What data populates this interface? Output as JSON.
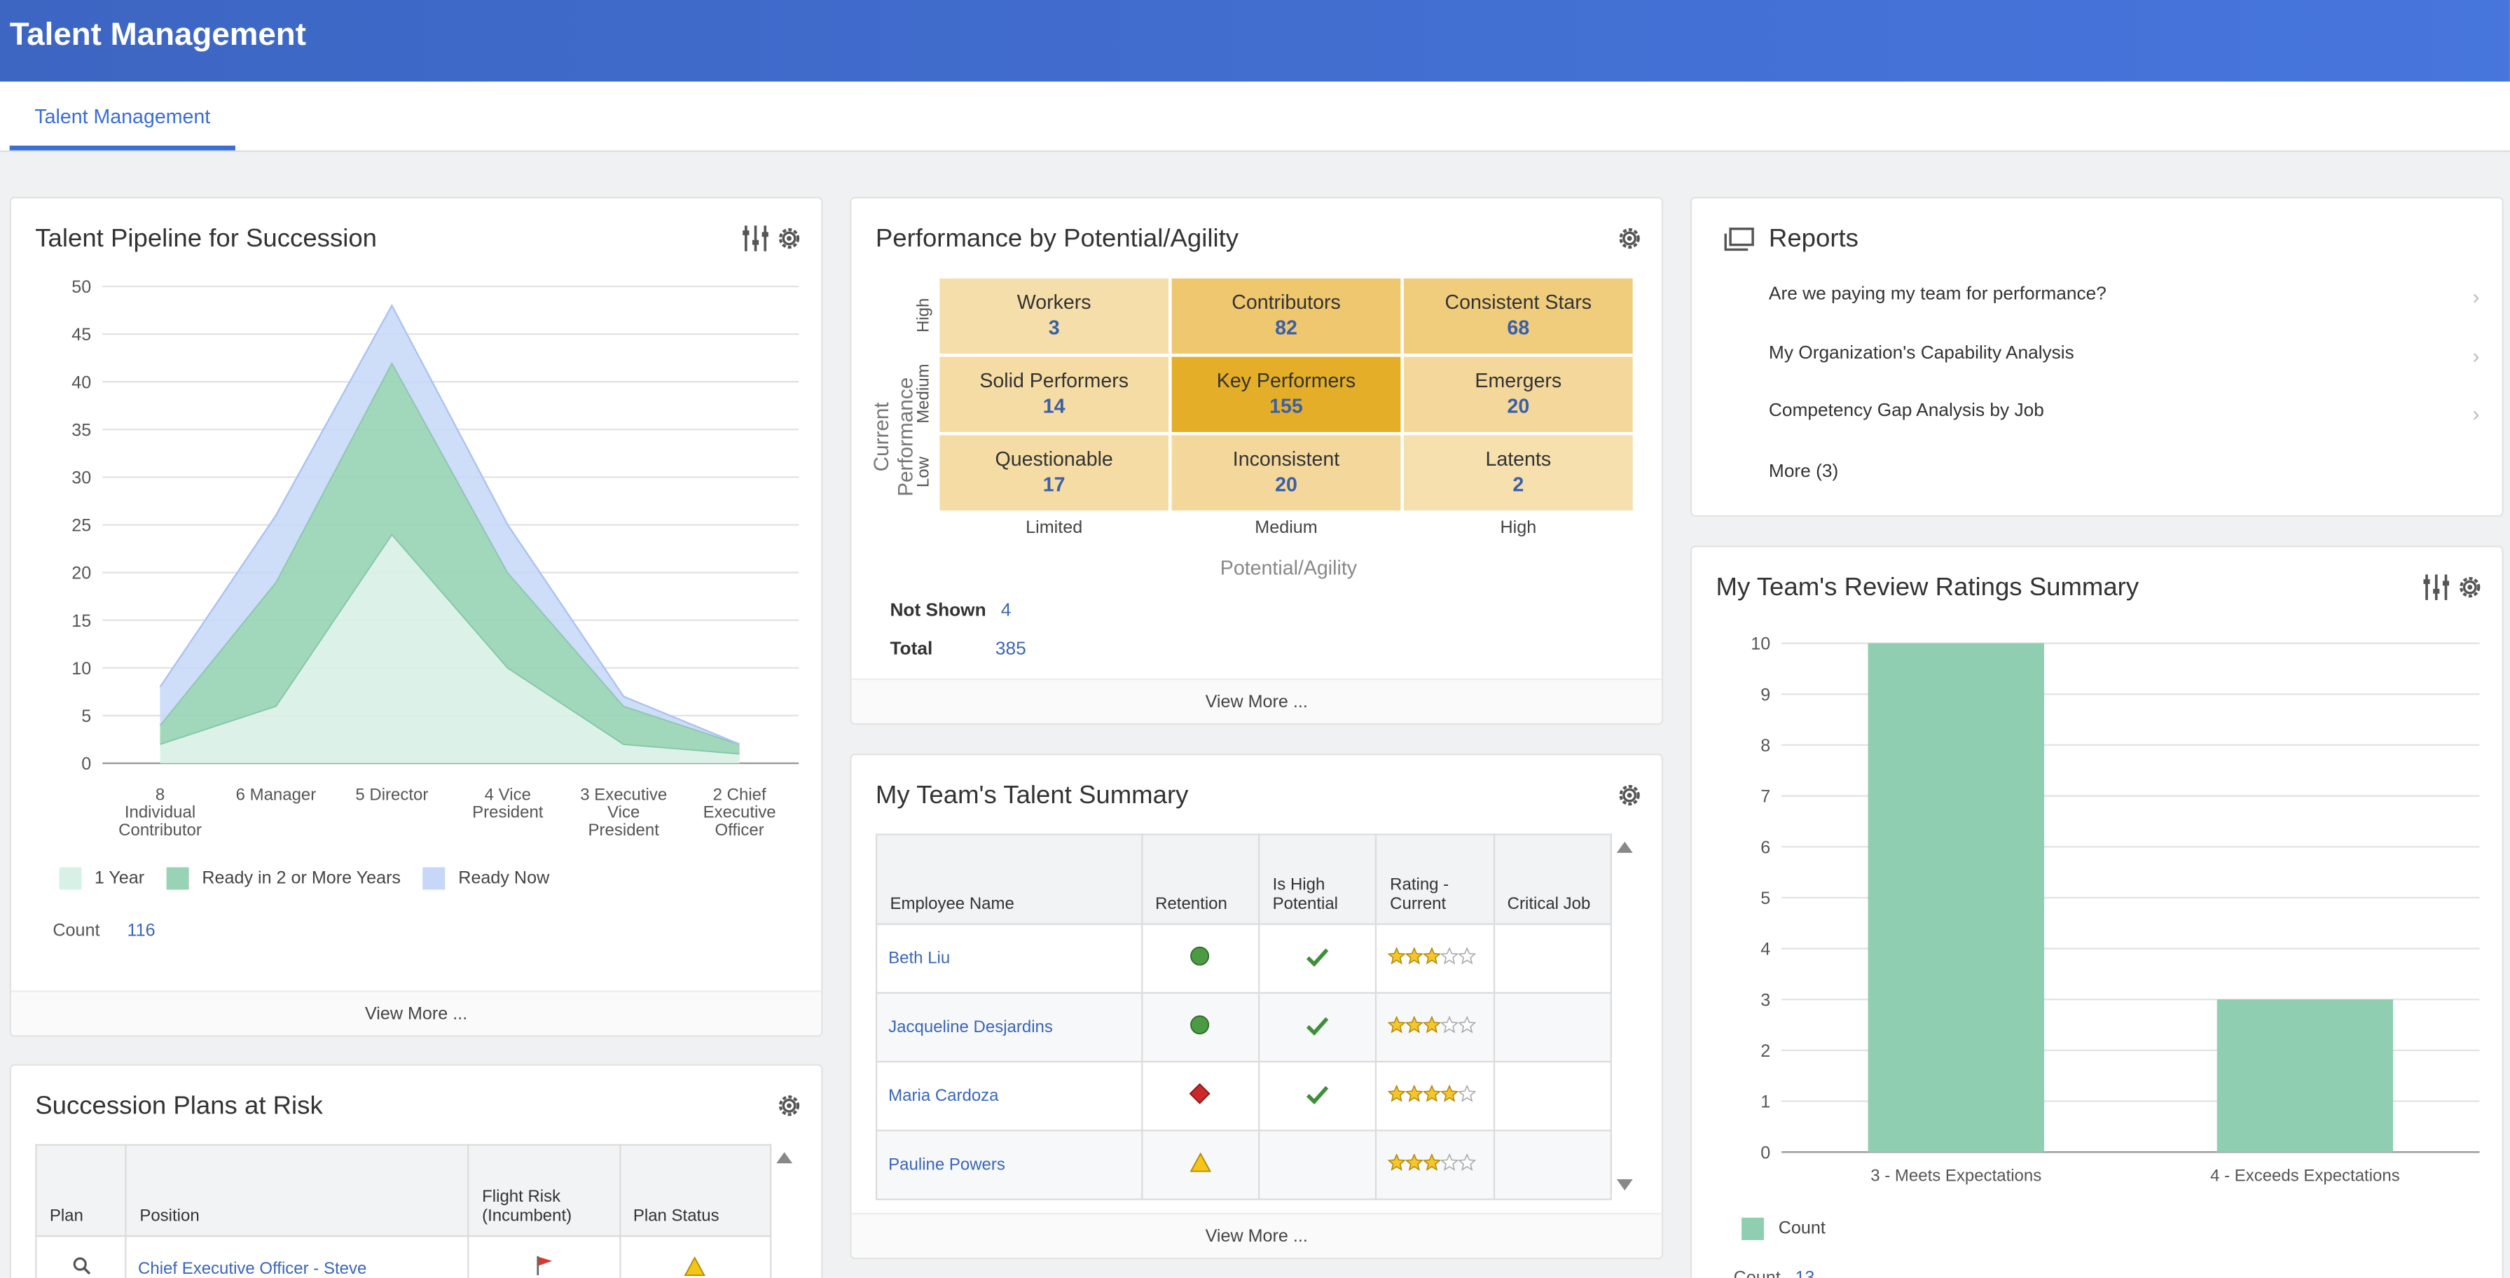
{
  "header": {
    "title": "Talent Management"
  },
  "tabs": [
    {
      "label": "Talent Management"
    }
  ],
  "pipeline": {
    "title": "Talent Pipeline for Succession",
    "view_more": "View More ...",
    "count_label": "Count",
    "count_value": "116",
    "chart_data": {
      "type": "area",
      "categories": [
        "8 Individual Contributor",
        "6 Manager",
        "5 Director",
        "4 Vice President",
        "3 Executive Vice President",
        "2 Chief Executive Officer"
      ],
      "category_lines": [
        [
          "8",
          "Individual",
          "Contributor"
        ],
        [
          "6 Manager"
        ],
        [
          "5 Director"
        ],
        [
          "4 Vice",
          "President"
        ],
        [
          "3 Executive",
          "Vice",
          "President"
        ],
        [
          "2 Chief",
          "Executive",
          "Officer"
        ]
      ],
      "series": [
        {
          "name": "1 Year",
          "values": [
            2,
            6,
            24,
            10,
            2,
            1
          ],
          "color": "#d8f1e7"
        },
        {
          "name": "Ready in 2 or More Years",
          "values": [
            2,
            13,
            18,
            10,
            4,
            1
          ],
          "color": "#97d3b4"
        },
        {
          "name": "Ready Now",
          "values": [
            4,
            7,
            6,
            5,
            1,
            0
          ],
          "color": "#c6d7f7"
        }
      ],
      "stacked": true,
      "ylim": [
        0,
        50
      ],
      "yticks": [
        0,
        5,
        10,
        15,
        20,
        25,
        30,
        35,
        40,
        45,
        50
      ],
      "legend": "bottom",
      "grid": true
    }
  },
  "performance": {
    "title": "Performance by Potential/Agility",
    "y_axis_label": "Current Performance",
    "x_axis_label": "Potential/Agility",
    "row_labels": [
      "High",
      "Medium",
      "Low"
    ],
    "col_labels": [
      "Limited",
      "Medium",
      "High"
    ],
    "cells": [
      [
        {
          "name": "Workers",
          "value": "3",
          "color": "#f5deaa"
        },
        {
          "name": "Contributors",
          "value": "82",
          "color": "#eec76f"
        },
        {
          "name": "Consistent Stars",
          "value": "68",
          "color": "#f0cd7d"
        }
      ],
      [
        {
          "name": "Solid Performers",
          "value": "14",
          "color": "#f5dca4"
        },
        {
          "name": "Key Performers",
          "value": "155",
          "color": "#e5ae28"
        },
        {
          "name": "Emergers",
          "value": "20",
          "color": "#f4d89b"
        }
      ],
      [
        {
          "name": "Questionable",
          "value": "17",
          "color": "#f5dca4"
        },
        {
          "name": "Inconsistent",
          "value": "20",
          "color": "#f4d89b"
        },
        {
          "name": "Latents",
          "value": "2",
          "color": "#f6e0ad"
        }
      ]
    ],
    "not_shown_label": "Not Shown",
    "not_shown_value": "4",
    "total_label": "Total",
    "total_value": "385",
    "view_more": "View More ..."
  },
  "reports": {
    "title": "Reports",
    "items": [
      {
        "label": "Are we paying my team for performance?"
      },
      {
        "label": "My Organization's Capability Analysis"
      },
      {
        "label": "Competency Gap Analysis by Job"
      }
    ],
    "more": "More (3)"
  },
  "talent_summary": {
    "title": "My Team's Talent Summary",
    "columns": [
      "Employee Name",
      "Retention",
      "Is High Potential",
      "Rating - Current",
      "Critical Job"
    ],
    "columns_lines": [
      [
        "Employee Name"
      ],
      [
        "Retention"
      ],
      [
        "Is High",
        "Potential"
      ],
      [
        "Rating -",
        "Current"
      ],
      [
        "Critical Job"
      ]
    ],
    "rows": [
      {
        "name": "Beth Liu",
        "retention": "green-circle-icon",
        "high_potential": true,
        "rating": 3
      },
      {
        "name": "Jacqueline Desjardins",
        "retention": "green-circle-icon",
        "high_potential": true,
        "rating": 3
      },
      {
        "name": "Maria Cardoza",
        "retention": "red-diamond-icon",
        "high_potential": true,
        "rating": 4
      },
      {
        "name": "Pauline Powers",
        "retention": "yellow-triangle-icon",
        "high_potential": false,
        "rating": 3
      }
    ],
    "view_more": "View More ..."
  },
  "succession_risk": {
    "title": "Succession Plans at Risk",
    "columns": [
      "Plan",
      "Position",
      "Flight Risk (Incumbent)",
      "Plan Status"
    ],
    "columns_lines": [
      [
        "Plan"
      ],
      [
        "Position"
      ],
      [
        "Flight Risk",
        "(Incumbent)"
      ],
      [
        "Plan Status"
      ]
    ],
    "rows": [
      {
        "position": "Chief Executive Officer - Steve"
      }
    ]
  },
  "review_ratings": {
    "title": "My Team's Review Ratings Summary",
    "legend_label": "Count",
    "count_label": "Count",
    "count_value": "13",
    "chart_data": {
      "type": "bar",
      "categories": [
        "3 - Meets Expectations",
        "4 - Exceeds Expectations"
      ],
      "series": [
        {
          "name": "Count",
          "values": [
            10,
            3
          ],
          "color": "#8fceb0"
        }
      ],
      "ylim": [
        0,
        10
      ],
      "yticks": [
        0,
        1,
        2,
        3,
        4,
        5,
        6,
        7,
        8,
        9,
        10
      ],
      "legend": "bottom-left",
      "grid": true
    }
  }
}
